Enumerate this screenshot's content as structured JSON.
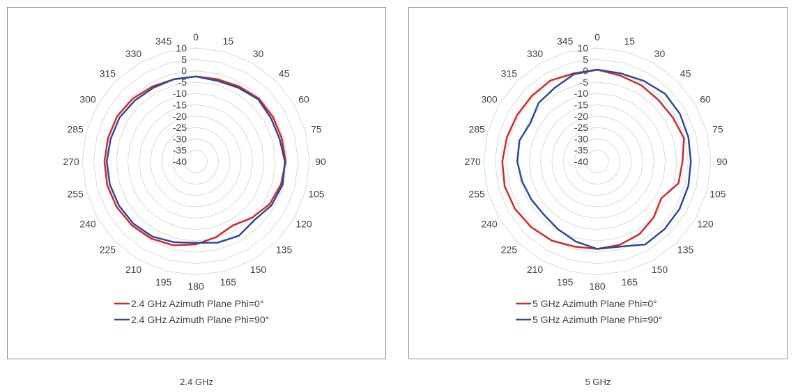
{
  "captions": [
    "2.4 GHz",
    "5 GHz"
  ],
  "chart_data": [
    {
      "type": "radar",
      "title": "",
      "angles": [
        0,
        15,
        30,
        45,
        60,
        75,
        90,
        105,
        120,
        135,
        150,
        165,
        180,
        195,
        210,
        225,
        240,
        255,
        270,
        285,
        300,
        315,
        330,
        345
      ],
      "radial_ticks": [
        10,
        5,
        0,
        -5,
        -10,
        -15,
        -20,
        -25,
        -30,
        -35,
        -40
      ],
      "rlim": [
        -40,
        10
      ],
      "grid": true,
      "legend_position": "bottom",
      "series": [
        {
          "name": "2.4 GHz Azimuth Plane Phi=0°",
          "color": "#d62728",
          "values": [
            -2.5,
            -2.5,
            -1.8,
            -0.8,
            -0.8,
            -0.8,
            -0.5,
            -1.2,
            -2.5,
            -5.0,
            -7.5,
            -5.5,
            -3.5,
            -1.8,
            -0.8,
            -0.2,
            0.2,
            0.4,
            0.2,
            0.0,
            0.0,
            -0.8,
            -1.8,
            -2.5
          ]
        },
        {
          "name": "2.4 GHz Azimuth Plane Phi=90°",
          "color": "#2a4b9b",
          "values": [
            -2.5,
            -3.2,
            -2.5,
            -1.2,
            -1.8,
            -1.8,
            -0.8,
            -0.5,
            -1.5,
            -3.5,
            -2.2,
            -3.0,
            -4.2,
            -3.2,
            -1.8,
            -1.2,
            -1.0,
            -0.8,
            -0.8,
            -1.2,
            -1.2,
            -2.0,
            -2.5,
            -2.5
          ]
        }
      ]
    },
    {
      "type": "radar",
      "title": "",
      "angles": [
        0,
        15,
        30,
        45,
        60,
        75,
        90,
        105,
        120,
        135,
        150,
        165,
        180,
        195,
        210,
        225,
        240,
        255,
        270,
        285,
        300,
        315,
        330,
        345
      ],
      "radial_ticks": [
        10,
        5,
        0,
        -5,
        -10,
        -15,
        -20,
        -25,
        -30,
        -35,
        -40
      ],
      "rlim": [
        -40,
        10
      ],
      "grid": true,
      "legend_position": "bottom",
      "series": [
        {
          "name": "5 GHz Azimuth Plane Phi=0°",
          "color": "#d62728",
          "values": [
            0.5,
            -0.8,
            -1.2,
            -1.8,
            -1.5,
            -0.5,
            -2.5,
            -3.0,
            -7.5,
            -5.0,
            -3.0,
            -2.0,
            -1.5,
            -1.2,
            0.2,
            1.0,
            1.8,
            2.2,
            1.8,
            1.2,
            0.8,
            0.8,
            1.2,
            0.2
          ]
        },
        {
          "name": "5 GHz Azimuth Plane Phi=90°",
          "color": "#2a4b9b",
          "values": [
            0.5,
            0.2,
            1.0,
            2.2,
            2.0,
            1.5,
            1.2,
            1.5,
            1.8,
            2.0,
            2.2,
            -1.2,
            -1.5,
            -3.5,
            -5.5,
            -6.8,
            -6.5,
            -5.8,
            -4.8,
            -4.5,
            -6.0,
            -3.5,
            -2.5,
            -0.2
          ]
        }
      ]
    }
  ]
}
